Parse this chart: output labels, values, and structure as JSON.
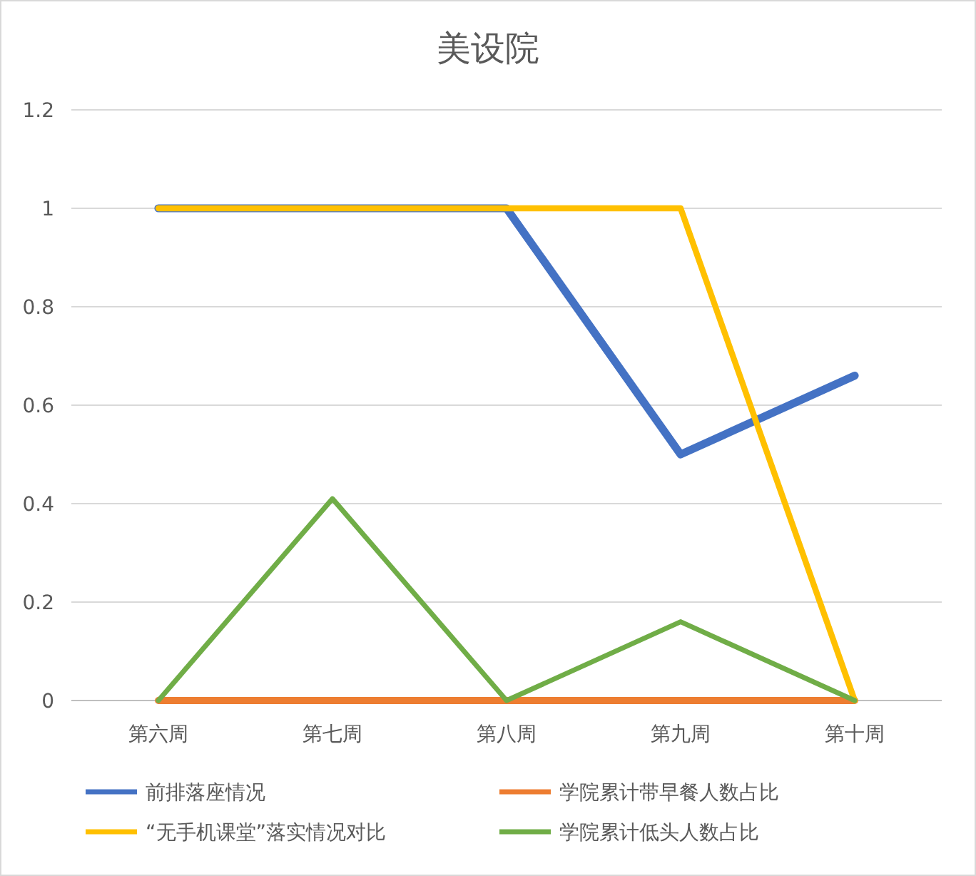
{
  "chart_data": {
    "type": "line",
    "title": "美设院",
    "categories": [
      "第六周",
      "第七周",
      "第八周",
      "第九周",
      "第十周"
    ],
    "series": [
      {
        "name": "前排落座情况",
        "color": "#4472c4",
        "values": [
          1,
          1,
          1,
          0.5,
          0.66
        ]
      },
      {
        "name": "学院累计带早餐人数占比",
        "color": "#ed7d31",
        "values": [
          0,
          0,
          0,
          0,
          0
        ]
      },
      {
        "name": "“无手机课堂”落实情况对比",
        "color": "#ffc000",
        "values": [
          1,
          1,
          1,
          1,
          0
        ]
      },
      {
        "name": "学院累计低头人数占比",
        "color": "#70ad47",
        "values": [
          0,
          0.41,
          0,
          0.16,
          0
        ]
      }
    ],
    "ylim": [
      0,
      1.2
    ],
    "yticks": [
      0,
      0.2,
      0.4,
      0.6,
      0.8,
      1,
      1.2
    ],
    "grid": "y",
    "legend": "bottom",
    "marker": "none",
    "line_style": "solid"
  }
}
